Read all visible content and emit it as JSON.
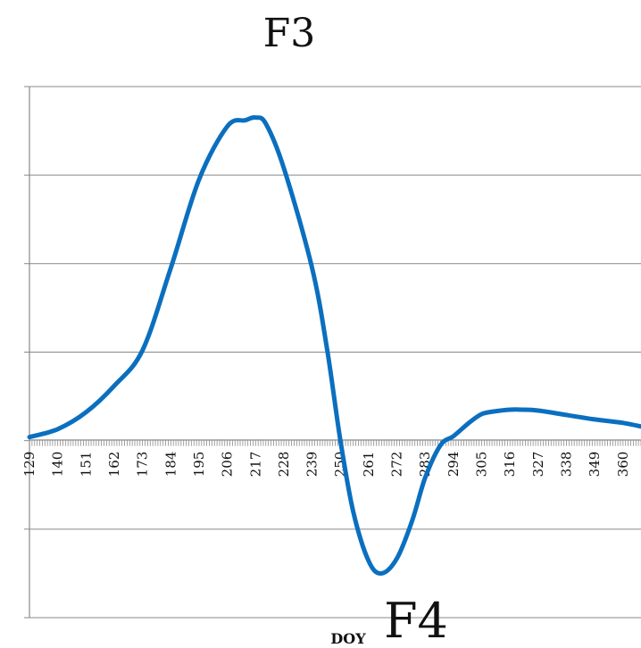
{
  "chart_data": {
    "type": "line",
    "title": "F3",
    "annotation": "F4",
    "xlabel": "DOY",
    "ylabel": "",
    "grid": true,
    "legend": "none",
    "series_color": "#0b6fbf",
    "grid_color": "#888888",
    "xlim": [
      129,
      367
    ],
    "ylim": [
      -2,
      4
    ],
    "x_ticks": [
      129,
      140,
      151,
      162,
      173,
      184,
      195,
      206,
      217,
      228,
      239,
      250,
      261,
      272,
      283,
      294,
      305,
      316,
      327,
      338,
      349,
      360
    ],
    "series": [
      {
        "x": [
          129,
          140,
          151,
          162,
          173,
          184,
          195,
          206,
          213,
          217,
          221,
          228,
          239,
          245,
          250,
          255,
          261,
          266,
          272,
          278,
          283,
          289,
          294,
          300,
          305,
          310,
          316,
          321,
          327,
          338,
          349,
          360,
          367
        ],
        "values": [
          0.04,
          0.13,
          0.32,
          0.62,
          1.02,
          1.95,
          2.95,
          3.55,
          3.62,
          3.65,
          3.58,
          3.08,
          1.95,
          1.0,
          0.0,
          -0.8,
          -1.36,
          -1.5,
          -1.33,
          -0.9,
          -0.42,
          -0.05,
          0.05,
          0.2,
          0.3,
          0.33,
          0.35,
          0.35,
          0.34,
          0.29,
          0.24,
          0.2,
          0.16
        ]
      }
    ]
  }
}
